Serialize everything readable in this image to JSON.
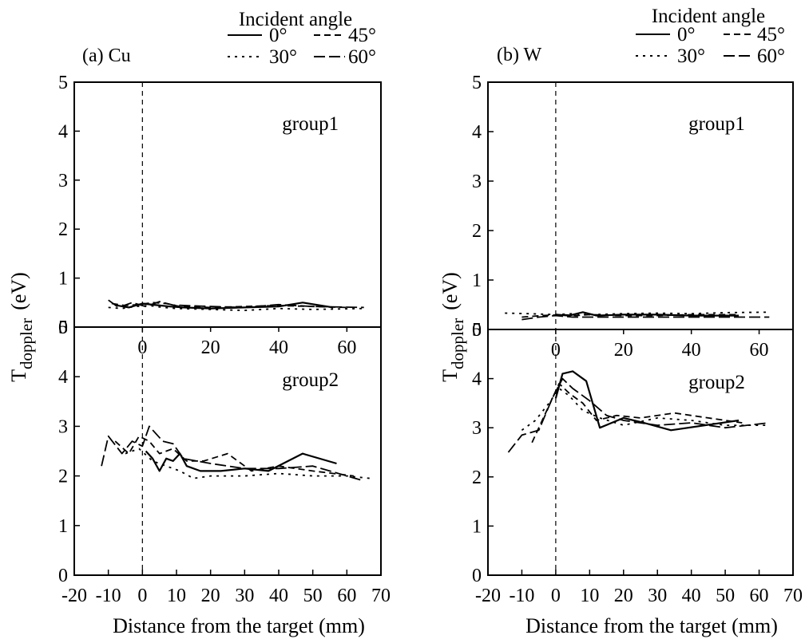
{
  "chart_data": [
    {
      "type": "line",
      "panel_label": "(a) Cu",
      "legend_title": "Incident angle",
      "legend": [
        {
          "name": "0°",
          "style": "solid"
        },
        {
          "name": "45°",
          "style": "dashed"
        },
        {
          "name": "30°",
          "style": "dotted"
        },
        {
          "name": "60°",
          "style": "longdash"
        }
      ],
      "xlabel": "Distance from the target  (mm)",
      "ylabel_main": "T",
      "ylabel_sub": "doppler",
      "ylabel_unit": "(eV)",
      "xlim": [
        -20,
        70
      ],
      "x_ticks": [
        "-20",
        "-10",
        "0",
        "10",
        "20",
        "30",
        "40",
        "50",
        "60",
        "70"
      ],
      "upper_x_ticks": [
        "0",
        "20",
        "40",
        "60"
      ],
      "y_ticks": [
        "0",
        "1",
        "2",
        "3",
        "4",
        "5"
      ],
      "groups": [
        {
          "label": "group1",
          "ylim": [
            0,
            5
          ],
          "series": [
            {
              "name": "0°",
              "x": [
                -8,
                -4,
                0,
                4,
                8,
                12,
                20,
                30,
                40,
                47,
                56
              ],
              "y": [
                0.45,
                0.4,
                0.48,
                0.45,
                0.42,
                0.4,
                0.38,
                0.4,
                0.42,
                0.5,
                0.4
              ]
            },
            {
              "name": "30°",
              "x": [
                -10,
                -6,
                -2,
                2,
                6,
                10,
                20,
                30,
                40,
                50,
                65
              ],
              "y": [
                0.4,
                0.38,
                0.42,
                0.44,
                0.4,
                0.38,
                0.36,
                0.34,
                0.38,
                0.36,
                0.38
              ]
            },
            {
              "name": "45°",
              "x": [
                -9,
                -5,
                -1,
                3,
                7,
                11,
                20,
                30,
                40,
                50,
                60
              ],
              "y": [
                0.48,
                0.44,
                0.46,
                0.5,
                0.48,
                0.42,
                0.4,
                0.42,
                0.44,
                0.42,
                0.4
              ]
            },
            {
              "name": "60°",
              "x": [
                -10,
                -7,
                -3,
                1,
                5,
                9,
                20,
                30,
                40,
                50,
                65
              ],
              "y": [
                0.55,
                0.4,
                0.5,
                0.42,
                0.52,
                0.45,
                0.42,
                0.4,
                0.46,
                0.42,
                0.4
              ]
            }
          ]
        },
        {
          "label": "group2",
          "ylim": [
            0,
            5
          ],
          "series": [
            {
              "name": "0°",
              "x": [
                1,
                3,
                5,
                7,
                9,
                11,
                13,
                17,
                23,
                30,
                37,
                47,
                57
              ],
              "y": [
                2.5,
                2.35,
                2.1,
                2.35,
                2.3,
                2.45,
                2.2,
                2.1,
                2.1,
                2.15,
                2.1,
                2.45,
                2.25
              ]
            },
            {
              "name": "30°",
              "x": [
                -5,
                -1,
                3,
                7,
                11,
                15,
                20,
                30,
                40,
                50,
                60,
                67
              ],
              "y": [
                2.45,
                2.55,
                2.3,
                2.2,
                2.1,
                1.95,
                2.0,
                2.0,
                2.05,
                2.0,
                2.0,
                1.95
              ]
            },
            {
              "name": "45°",
              "x": [
                -8,
                -4,
                -1,
                2,
                5,
                9,
                13,
                18,
                25,
                32,
                40,
                50,
                62
              ],
              "y": [
                2.7,
                2.45,
                2.8,
                2.7,
                2.45,
                2.55,
                2.3,
                2.3,
                2.45,
                2.1,
                2.2,
                2.1,
                2.0
              ]
            },
            {
              "name": "60°",
              "x": [
                -12,
                -10,
                -6,
                -3,
                0,
                2,
                6,
                9,
                12,
                20,
                30,
                40,
                50,
                65
              ],
              "y": [
                2.2,
                2.8,
                2.45,
                2.7,
                2.6,
                3.0,
                2.7,
                2.65,
                2.35,
                2.25,
                2.15,
                2.15,
                2.2,
                1.9
              ]
            }
          ]
        }
      ]
    },
    {
      "type": "line",
      "panel_label": "(b) W",
      "legend_title": "Incident angle",
      "legend": [
        {
          "name": "0°",
          "style": "solid"
        },
        {
          "name": "45°",
          "style": "dashed"
        },
        {
          "name": "30°",
          "style": "dotted"
        },
        {
          "name": "60°",
          "style": "longdash"
        }
      ],
      "xlabel": "Distance from the target  (mm)",
      "ylabel_main": "T",
      "ylabel_sub": "doppler",
      "ylabel_unit": "(eV)",
      "xlim": [
        -20,
        70
      ],
      "x_ticks": [
        "-20",
        "-10",
        "0",
        "10",
        "20",
        "30",
        "40",
        "50",
        "60",
        "70"
      ],
      "upper_x_ticks": [
        "0",
        "20",
        "40",
        "60"
      ],
      "y_ticks": [
        "0",
        "1",
        "2",
        "3",
        "4",
        "5"
      ],
      "groups": [
        {
          "label": "group1",
          "ylim": [
            0,
            5
          ],
          "series": [
            {
              "name": "0°",
              "x": [
                0,
                4,
                8,
                12,
                20,
                30,
                40,
                54
              ],
              "y": [
                0.3,
                0.28,
                0.35,
                0.28,
                0.3,
                0.3,
                0.28,
                0.28
              ]
            },
            {
              "name": "30°",
              "x": [
                -15,
                -8,
                0,
                5,
                10,
                20,
                30,
                40,
                50,
                63
              ],
              "y": [
                0.33,
                0.32,
                0.3,
                0.32,
                0.3,
                0.32,
                0.33,
                0.32,
                0.34,
                0.35
              ]
            },
            {
              "name": "45°",
              "x": [
                -10,
                -4,
                2,
                6,
                10,
                20,
                30,
                40,
                54
              ],
              "y": [
                0.25,
                0.28,
                0.3,
                0.28,
                0.3,
                0.28,
                0.28,
                0.3,
                0.3
              ]
            },
            {
              "name": "60°",
              "x": [
                -10,
                -5,
                0,
                5,
                10,
                20,
                30,
                40,
                50,
                63
              ],
              "y": [
                0.2,
                0.25,
                0.28,
                0.25,
                0.25,
                0.25,
                0.25,
                0.25,
                0.25,
                0.25
              ]
            }
          ]
        },
        {
          "label": "group2",
          "ylim": [
            0,
            5
          ],
          "series": [
            {
              "name": "0°",
              "x": [
                0,
                2,
                5,
                9,
                13,
                20,
                26,
                34,
                44,
                54
              ],
              "y": [
                3.6,
                4.1,
                4.15,
                3.95,
                3.0,
                3.2,
                3.1,
                2.95,
                3.05,
                3.15
              ]
            },
            {
              "name": "30°",
              "x": [
                -10,
                -6,
                -2,
                1,
                4,
                8,
                13,
                20,
                30,
                40,
                50,
                63
              ],
              "y": [
                2.95,
                3.15,
                3.5,
                3.8,
                3.65,
                3.35,
                3.2,
                3.05,
                3.2,
                3.15,
                3.05,
                3.05
              ]
            },
            {
              "name": "45°",
              "x": [
                -7,
                -3,
                1,
                4,
                8,
                12,
                18,
                25,
                35,
                45,
                55
              ],
              "y": [
                2.7,
                3.3,
                3.9,
                3.7,
                3.5,
                3.15,
                3.25,
                3.2,
                3.3,
                3.2,
                3.1
              ]
            },
            {
              "name": "60°",
              "x": [
                -14,
                -10,
                -5,
                -1,
                2,
                5,
                10,
                15,
                20,
                30,
                40,
                50,
                63
              ],
              "y": [
                2.5,
                2.85,
                2.95,
                3.6,
                4.0,
                3.8,
                3.55,
                3.25,
                3.15,
                3.05,
                3.1,
                3.0,
                3.1
              ]
            }
          ]
        }
      ]
    }
  ]
}
